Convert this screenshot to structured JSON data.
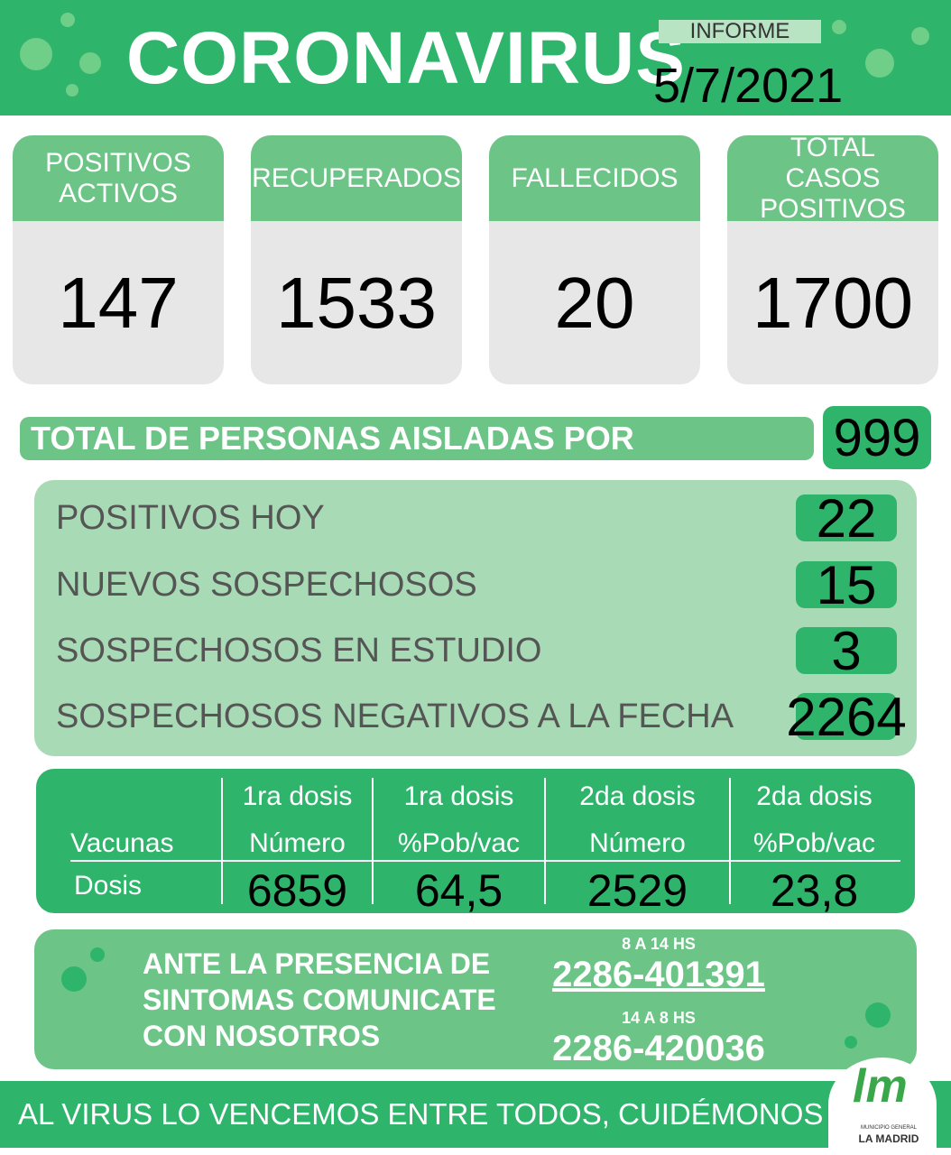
{
  "header": {
    "title": "CORONAVIRUS",
    "report_label": "INFORME",
    "date": "5/7/2021"
  },
  "cards": [
    {
      "label": "POSITIVOS ACTIVOS",
      "value": 147
    },
    {
      "label": "RECUPERADOS",
      "value": 1533
    },
    {
      "label": "FALLECIDOS",
      "value": 20
    },
    {
      "label": "TOTAL CASOS POSITIVOS",
      "value": 1700
    }
  ],
  "isolated": {
    "label": "TOTAL DE PERSONAS AISLADAS POR CONTACTO",
    "value": 999
  },
  "today": [
    {
      "label": "POSITIVOS HOY",
      "value": 22
    },
    {
      "label": "NUEVOS SOSPECHOSOS",
      "value": 15
    },
    {
      "label": "SOSPECHOSOS EN ESTUDIO",
      "value": 3
    },
    {
      "label": "SOSPECHOSOS NEGATIVOS A LA FECHA",
      "value": 2264
    }
  ],
  "vaccines": {
    "row_header": "Vacunas",
    "row_label": "Dosis",
    "columns": [
      {
        "dose": "1ra dosis",
        "measure": "Número",
        "value": "6859"
      },
      {
        "dose": "1ra dosis",
        "measure": "%Pob/vac",
        "value": "64,5"
      },
      {
        "dose": "2da dosis",
        "measure": "Número",
        "value": "2529"
      },
      {
        "dose": "2da dosis",
        "measure": "%Pob/vac",
        "value": "23,8"
      }
    ]
  },
  "contact": {
    "lines": [
      "ANTE LA PRESENCIA DE",
      "SINTOMAS COMUNICATE",
      "CON NOSOTROS"
    ],
    "phones": [
      {
        "hours": "8 A 14 HS",
        "number": "2286-401391"
      },
      {
        "hours": "14 A 8 HS",
        "number": "2286-420036"
      }
    ]
  },
  "footer": {
    "slogan": "AL VIRUS LO VENCEMOS ENTRE TODOS, CUIDÉMONOS",
    "logo_mark": "lm",
    "logo_small": "MUNICIPIO GENERAL",
    "logo_name": "LA MADRID"
  }
}
